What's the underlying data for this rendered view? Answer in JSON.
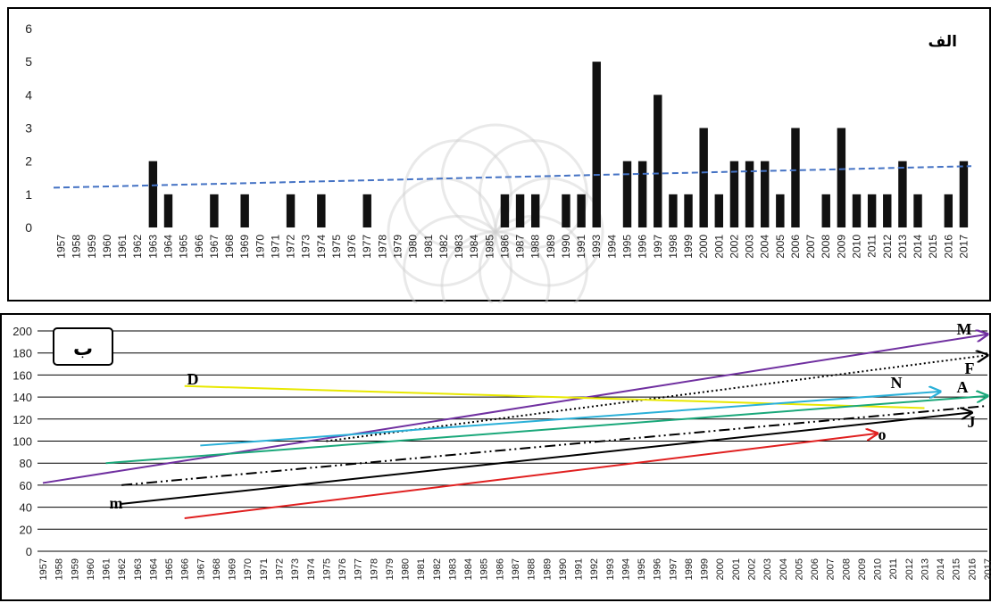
{
  "chart_data": [
    {
      "type": "bar",
      "panel_label": "الف",
      "ylim": [
        0,
        6
      ],
      "yticks": [
        0,
        1,
        2,
        3,
        4,
        5,
        6
      ],
      "grid": false,
      "categories": [
        "1957",
        "1958",
        "1959",
        "1960",
        "1961",
        "1962",
        "1963",
        "1964",
        "1965",
        "1966",
        "1967",
        "1968",
        "1969",
        "1970",
        "1971",
        "1972",
        "1973",
        "1974",
        "1975",
        "1976",
        "1977",
        "1978",
        "1979",
        "1980",
        "1981",
        "1982",
        "1983",
        "1984",
        "1985",
        "1986",
        "1987",
        "1988",
        "1989",
        "1990",
        "1991",
        "1993",
        "1994",
        "1995",
        "1996",
        "1997",
        "1998",
        "1999",
        "2000",
        "2001",
        "2002",
        "2003",
        "2004",
        "2005",
        "2006",
        "2007",
        "2008",
        "2009",
        "2010",
        "2011",
        "2012",
        "2013",
        "2014",
        "2015",
        "2016",
        "2017"
      ],
      "values": [
        0,
        0,
        0,
        0,
        0,
        0,
        2,
        1,
        0,
        0,
        1,
        0,
        1,
        0,
        0,
        1,
        0,
        1,
        0,
        0,
        1,
        0,
        0,
        0,
        0,
        0,
        0,
        0,
        0,
        1,
        1,
        1,
        0,
        1,
        1,
        5,
        0,
        2,
        2,
        4,
        1,
        1,
        3,
        1,
        2,
        2,
        2,
        1,
        3,
        0,
        1,
        3,
        1,
        1,
        1,
        2,
        1,
        0,
        1,
        2
      ],
      "trendline": {
        "style": "dashed",
        "color": "#4472c4",
        "from": 1.2,
        "to": 1.85
      }
    },
    {
      "type": "line",
      "panel_label": "ب",
      "ylim": [
        0,
        200
      ],
      "yticks": [
        0,
        20,
        40,
        60,
        80,
        100,
        120,
        140,
        160,
        180,
        200
      ],
      "grid": true,
      "categories": [
        "1957",
        "1958",
        "1959",
        "1960",
        "1961",
        "1962",
        "1963",
        "1964",
        "1965",
        "1966",
        "1967",
        "1968",
        "1969",
        "1970",
        "1971",
        "1972",
        "1973",
        "1974",
        "1975",
        "1976",
        "1977",
        "1978",
        "1979",
        "1980",
        "1981",
        "1982",
        "1983",
        "1984",
        "1985",
        "1986",
        "1987",
        "1988",
        "1989",
        "1990",
        "1991",
        "1992",
        "1993",
        "1994",
        "1995",
        "1996",
        "1997",
        "1998",
        "1999",
        "2000",
        "2001",
        "2002",
        "2003",
        "2004",
        "2005",
        "2006",
        "2007",
        "2008",
        "2009",
        "2010",
        "2011",
        "2012",
        "2013",
        "2014",
        "2015",
        "2016",
        "2017"
      ],
      "series": [
        {
          "name": "M",
          "color": "#7030a0",
          "style": "solid",
          "x": [
            1957,
            2017
          ],
          "y": [
            62,
            197
          ],
          "arrow": true
        },
        {
          "name": "F",
          "color": "#000000",
          "style": "dotted",
          "x": [
            1975,
            2017
          ],
          "y": [
            100,
            178
          ],
          "arrow": true
        },
        {
          "name": "D",
          "color": "#e8e800",
          "style": "solid",
          "x": [
            1966,
            2013
          ],
          "y": [
            150,
            130
          ],
          "arrow": false
        },
        {
          "name": "N",
          "color": "#2ab0d8",
          "style": "solid",
          "x": [
            1967,
            2014
          ],
          "y": [
            96,
            145
          ],
          "arrow": true
        },
        {
          "name": "A",
          "color": "#1aa87a",
          "style": "solid",
          "x": [
            1961,
            2017
          ],
          "y": [
            80,
            141
          ],
          "arrow": true
        },
        {
          "name": "J",
          "color": "#000000",
          "style": "dashdotdot",
          "x": [
            1962,
            2017
          ],
          "y": [
            60,
            132
          ],
          "arrow": false
        },
        {
          "name": "",
          "color": "#000000",
          "style": "solid",
          "x": [
            1962,
            2016
          ],
          "y": [
            43,
            126
          ],
          "arrow": true
        },
        {
          "name": "m",
          "color": "#000000",
          "style": "solid",
          "x": [
            1962,
            1962
          ],
          "y": [
            43,
            43
          ],
          "arrow": false
        },
        {
          "name": "o",
          "color": "#e02020",
          "style": "solid",
          "x": [
            1966,
            2010
          ],
          "y": [
            30,
            107
          ],
          "arrow": true
        }
      ]
    }
  ]
}
